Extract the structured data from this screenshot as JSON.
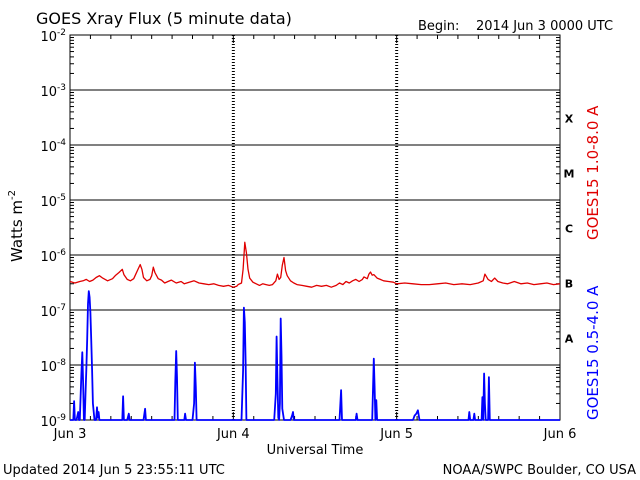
{
  "chart_data": {
    "type": "line",
    "title": "GOES Xray Flux (5 minute data)",
    "begin_label": "Begin:",
    "begin_value": "2014 Jun 3 0000 UTC",
    "xlabel": "Universal Time",
    "ylabel_base": "Watts m",
    "ylabel_exp": "-2",
    "x_tick_labels": [
      "Jun 3",
      "Jun 4",
      "Jun 5",
      "Jun 6"
    ],
    "xlim_days": [
      0,
      3
    ],
    "y_scale": "log",
    "ylim": [
      1e-09,
      0.01
    ],
    "y_ticks": [
      {
        "base": "10",
        "exp": "-2"
      },
      {
        "base": "10",
        "exp": "-3"
      },
      {
        "base": "10",
        "exp": "-4"
      },
      {
        "base": "10",
        "exp": "-5"
      },
      {
        "base": "10",
        "exp": "-6"
      },
      {
        "base": "10",
        "exp": "-7"
      },
      {
        "base": "10",
        "exp": "-8"
      },
      {
        "base": "10",
        "exp": "-9"
      }
    ],
    "flare_classes": [
      {
        "label": "X",
        "low": 0.0001,
        "high": 0.001
      },
      {
        "label": "M",
        "low": 1e-05,
        "high": 0.0001
      },
      {
        "label": "C",
        "low": 1e-06,
        "high": 1e-05
      },
      {
        "label": "B",
        "low": 1e-07,
        "high": 1e-06
      },
      {
        "label": "A",
        "low": 1e-08,
        "high": 1e-07
      }
    ],
    "grid": true,
    "series": [
      {
        "name": "GOES15 1.0-8.0 A",
        "color": "#e00000",
        "points": [
          [
            0.0,
            3.3e-07
          ],
          [
            0.03,
            3.1e-07
          ],
          [
            0.06,
            3.3e-07
          ],
          [
            0.08,
            3.4e-07
          ],
          [
            0.1,
            3.6e-07
          ],
          [
            0.12,
            3.3e-07
          ],
          [
            0.14,
            3.5e-07
          ],
          [
            0.16,
            3.9e-07
          ],
          [
            0.18,
            4.2e-07
          ],
          [
            0.2,
            3.8e-07
          ],
          [
            0.23,
            3.4e-07
          ],
          [
            0.26,
            3.7e-07
          ],
          [
            0.28,
            4.3e-07
          ],
          [
            0.3,
            4.8e-07
          ],
          [
            0.32,
            5.5e-07
          ],
          [
            0.33,
            4.4e-07
          ],
          [
            0.35,
            3.6e-07
          ],
          [
            0.37,
            3.4e-07
          ],
          [
            0.39,
            3.7e-07
          ],
          [
            0.4,
            4.3e-07
          ],
          [
            0.42,
            5.8e-07
          ],
          [
            0.43,
            6.7e-07
          ],
          [
            0.44,
            5.5e-07
          ],
          [
            0.45,
            3.9e-07
          ],
          [
            0.47,
            3.4e-07
          ],
          [
            0.49,
            3.6e-07
          ],
          [
            0.5,
            4.2e-07
          ],
          [
            0.51,
            6e-07
          ],
          [
            0.52,
            4.8e-07
          ],
          [
            0.54,
            3.7e-07
          ],
          [
            0.56,
            3.5e-07
          ],
          [
            0.58,
            3.1e-07
          ],
          [
            0.6,
            3.3e-07
          ],
          [
            0.62,
            3.5e-07
          ],
          [
            0.65,
            3.1e-07
          ],
          [
            0.68,
            3.3e-07
          ],
          [
            0.7,
            3e-07
          ],
          [
            0.73,
            3.2e-07
          ],
          [
            0.76,
            3.4e-07
          ],
          [
            0.79,
            3.1e-07
          ],
          [
            0.82,
            3e-07
          ],
          [
            0.85,
            2.9e-07
          ],
          [
            0.88,
            3e-07
          ],
          [
            0.91,
            2.8e-07
          ],
          [
            0.94,
            2.7e-07
          ],
          [
            0.97,
            2.8e-07
          ],
          [
            1.0,
            2.6e-07
          ],
          [
            1.02,
            2.7e-07
          ],
          [
            1.03,
            2.9e-07
          ],
          [
            1.05,
            3.1e-07
          ],
          [
            1.06,
            5.5e-07
          ],
          [
            1.07,
            1.7e-06
          ],
          [
            1.08,
            1.1e-06
          ],
          [
            1.09,
            5.5e-07
          ],
          [
            1.1,
            3.8e-07
          ],
          [
            1.12,
            3.2e-07
          ],
          [
            1.14,
            3e-07
          ],
          [
            1.16,
            2.8e-07
          ],
          [
            1.18,
            3e-07
          ],
          [
            1.2,
            2.9e-07
          ],
          [
            1.22,
            2.8e-07
          ],
          [
            1.24,
            2.9e-07
          ],
          [
            1.26,
            3.4e-07
          ],
          [
            1.27,
            4.5e-07
          ],
          [
            1.28,
            3.6e-07
          ],
          [
            1.29,
            3.9e-07
          ],
          [
            1.3,
            6.5e-07
          ],
          [
            1.31,
            9e-07
          ],
          [
            1.32,
            5.2e-07
          ],
          [
            1.33,
            4.2e-07
          ],
          [
            1.35,
            3.4e-07
          ],
          [
            1.37,
            3.1e-07
          ],
          [
            1.39,
            2.9e-07
          ],
          [
            1.42,
            2.8e-07
          ],
          [
            1.45,
            2.7e-07
          ],
          [
            1.48,
            2.6e-07
          ],
          [
            1.51,
            2.8e-07
          ],
          [
            1.54,
            2.7e-07
          ],
          [
            1.57,
            2.8e-07
          ],
          [
            1.6,
            2.6e-07
          ],
          [
            1.63,
            2.8e-07
          ],
          [
            1.65,
            3.1e-07
          ],
          [
            1.67,
            2.9e-07
          ],
          [
            1.69,
            3.3e-07
          ],
          [
            1.71,
            3.1e-07
          ],
          [
            1.73,
            3.4e-07
          ],
          [
            1.75,
            3.6e-07
          ],
          [
            1.77,
            3.3e-07
          ],
          [
            1.79,
            3.6e-07
          ],
          [
            1.8,
            4e-07
          ],
          [
            1.82,
            3.7e-07
          ],
          [
            1.83,
            4.5e-07
          ],
          [
            1.84,
            4.9e-07
          ],
          [
            1.85,
            4.3e-07
          ],
          [
            1.86,
            4.4e-07
          ],
          [
            1.88,
            3.8e-07
          ],
          [
            1.9,
            3.6e-07
          ],
          [
            1.92,
            3.4e-07
          ],
          [
            1.95,
            3.3e-07
          ],
          [
            1.98,
            3.2e-07
          ],
          [
            2.0,
            3e-07
          ],
          [
            2.05,
            3.1e-07
          ],
          [
            2.1,
            3e-07
          ],
          [
            2.15,
            2.9e-07
          ],
          [
            2.2,
            2.9e-07
          ],
          [
            2.25,
            3e-07
          ],
          [
            2.3,
            3.1e-07
          ],
          [
            2.35,
            2.9e-07
          ],
          [
            2.4,
            3e-07
          ],
          [
            2.45,
            2.9e-07
          ],
          [
            2.5,
            3.1e-07
          ],
          [
            2.53,
            3.4e-07
          ],
          [
            2.54,
            4.5e-07
          ],
          [
            2.56,
            3.6e-07
          ],
          [
            2.58,
            3.3e-07
          ],
          [
            2.6,
            3.8e-07
          ],
          [
            2.62,
            3.3e-07
          ],
          [
            2.65,
            3.1e-07
          ],
          [
            2.68,
            3e-07
          ],
          [
            2.72,
            3.3e-07
          ],
          [
            2.76,
            3e-07
          ],
          [
            2.8,
            3.1e-07
          ],
          [
            2.84,
            2.9e-07
          ],
          [
            2.88,
            3e-07
          ],
          [
            2.92,
            3.1e-07
          ],
          [
            2.96,
            2.9e-07
          ],
          [
            3.0,
            3e-07
          ]
        ]
      },
      {
        "name": "GOES15 0.5-4.0 A",
        "color": "#0000ff",
        "points": [
          [
            0.0,
            1e-09
          ],
          [
            0.02,
            1e-09
          ],
          [
            0.025,
            2.2e-09
          ],
          [
            0.03,
            1e-09
          ],
          [
            0.04,
            1e-09
          ],
          [
            0.05,
            1.4e-09
          ],
          [
            0.055,
            1e-09
          ],
          [
            0.06,
            1e-09
          ],
          [
            0.07,
            7e-09
          ],
          [
            0.075,
            1.7e-08
          ],
          [
            0.08,
            5e-09
          ],
          [
            0.085,
            1e-09
          ],
          [
            0.09,
            1e-09
          ],
          [
            0.095,
            3e-09
          ],
          [
            0.1,
            8e-09
          ],
          [
            0.105,
            3e-08
          ],
          [
            0.11,
            1.3e-07
          ],
          [
            0.115,
            2.2e-07
          ],
          [
            0.12,
            1.7e-07
          ],
          [
            0.125,
            9e-08
          ],
          [
            0.13,
            3e-08
          ],
          [
            0.135,
            8e-09
          ],
          [
            0.14,
            2e-09
          ],
          [
            0.15,
            1e-09
          ],
          [
            0.16,
            1e-09
          ],
          [
            0.165,
            1.7e-09
          ],
          [
            0.17,
            1.1e-09
          ],
          [
            0.175,
            1.4e-09
          ],
          [
            0.18,
            1e-09
          ],
          [
            0.2,
            1e-09
          ],
          [
            0.25,
            1e-09
          ],
          [
            0.3,
            1e-09
          ],
          [
            0.32,
            1e-09
          ],
          [
            0.325,
            2.7e-09
          ],
          [
            0.33,
            1e-09
          ],
          [
            0.35,
            1e-09
          ],
          [
            0.36,
            1.3e-09
          ],
          [
            0.365,
            1e-09
          ],
          [
            0.4,
            1e-09
          ],
          [
            0.45,
            1e-09
          ],
          [
            0.46,
            1.6e-09
          ],
          [
            0.465,
            1e-09
          ],
          [
            0.5,
            1e-09
          ],
          [
            0.6,
            1e-09
          ],
          [
            0.64,
            1e-09
          ],
          [
            0.645,
            5e-09
          ],
          [
            0.65,
            1.8e-08
          ],
          [
            0.655,
            6e-09
          ],
          [
            0.66,
            1e-09
          ],
          [
            0.7,
            1e-09
          ],
          [
            0.705,
            1.3e-09
          ],
          [
            0.71,
            1e-09
          ],
          [
            0.75,
            1e-09
          ],
          [
            0.76,
            2e-09
          ],
          [
            0.765,
            1.1e-08
          ],
          [
            0.77,
            4e-09
          ],
          [
            0.775,
            1e-09
          ],
          [
            0.8,
            1e-09
          ],
          [
            0.9,
            1e-09
          ],
          [
            1.0,
            1e-09
          ],
          [
            1.05,
            1e-09
          ],
          [
            1.06,
            8e-09
          ],
          [
            1.065,
            1.1e-07
          ],
          [
            1.07,
            6e-08
          ],
          [
            1.075,
            1.2e-08
          ],
          [
            1.08,
            1e-09
          ],
          [
            1.15,
            1e-09
          ],
          [
            1.2,
            1e-09
          ],
          [
            1.25,
            1e-09
          ],
          [
            1.26,
            3e-09
          ],
          [
            1.265,
            3.3e-08
          ],
          [
            1.27,
            6e-09
          ],
          [
            1.275,
            1.1e-09
          ],
          [
            1.28,
            1e-09
          ],
          [
            1.285,
            2e-09
          ],
          [
            1.29,
            7e-08
          ],
          [
            1.295,
            1.5e-08
          ],
          [
            1.3,
            1.6e-09
          ],
          [
            1.31,
            1e-09
          ],
          [
            1.35,
            1e-09
          ],
          [
            1.36,
            1.2e-09
          ],
          [
            1.365,
            1.4e-09
          ],
          [
            1.37,
            1e-09
          ],
          [
            1.4,
            1e-09
          ],
          [
            1.5,
            1e-09
          ],
          [
            1.6,
            1e-09
          ],
          [
            1.65,
            1e-09
          ],
          [
            1.66,
            3.5e-09
          ],
          [
            1.665,
            1e-09
          ],
          [
            1.7,
            1e-09
          ],
          [
            1.75,
            1e-09
          ],
          [
            1.755,
            1.3e-09
          ],
          [
            1.76,
            1e-09
          ],
          [
            1.8,
            1e-09
          ],
          [
            1.85,
            1e-09
          ],
          [
            1.86,
            1.3e-08
          ],
          [
            1.865,
            4e-09
          ],
          [
            1.87,
            1e-09
          ],
          [
            1.875,
            2.3e-09
          ],
          [
            1.88,
            1e-09
          ],
          [
            1.9,
            1e-09
          ],
          [
            2.0,
            1e-09
          ],
          [
            2.1,
            1e-09
          ],
          [
            2.11,
            1.2e-09
          ],
          [
            2.12,
            1.3e-09
          ],
          [
            2.13,
            1.5e-09
          ],
          [
            2.14,
            1e-09
          ],
          [
            2.2,
            1e-09
          ],
          [
            2.3,
            1e-09
          ],
          [
            2.4,
            1e-09
          ],
          [
            2.44,
            1e-09
          ],
          [
            2.445,
            1.4e-09
          ],
          [
            2.45,
            1e-09
          ],
          [
            2.47,
            1e-09
          ],
          [
            2.475,
            1.3e-09
          ],
          [
            2.48,
            1e-09
          ],
          [
            2.52,
            1e-09
          ],
          [
            2.525,
            2.6e-09
          ],
          [
            2.53,
            1e-09
          ],
          [
            2.535,
            7e-09
          ],
          [
            2.54,
            2e-09
          ],
          [
            2.545,
            1e-09
          ],
          [
            2.56,
            1e-09
          ],
          [
            2.565,
            6e-09
          ],
          [
            2.57,
            1e-09
          ],
          [
            2.6,
            1e-09
          ],
          [
            2.7,
            1e-09
          ],
          [
            2.8,
            1e-09
          ],
          [
            2.9,
            1e-09
          ],
          [
            3.0,
            1e-09
          ]
        ]
      }
    ]
  },
  "footer": {
    "updated": "Updated 2014 Jun  5 23:55:11 UTC",
    "credit": "NOAA/SWPC Boulder, CO USA"
  }
}
